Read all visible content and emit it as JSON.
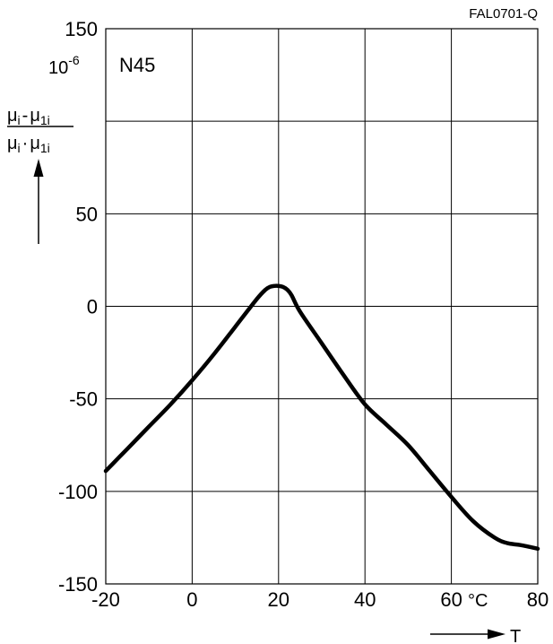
{
  "figure_id": "FAL0701-Q",
  "chart_data": {
    "type": "line",
    "material_label": "N45",
    "y_unit_base": "10",
    "y_unit_exp": "-6",
    "ylabel": {
      "num_a": "μ",
      "num_a_sub": "i",
      "num_op": "-",
      "num_b": "μ",
      "num_b_sub": "1i",
      "den_a": "μ",
      "den_a_sub": "i",
      "den_op": "·",
      "den_b": "μ",
      "den_b_sub": "1i"
    },
    "x_unit": "°C",
    "xlabel": "T",
    "xlim": [
      -20,
      80
    ],
    "ylim": [
      -150,
      150
    ],
    "xticks": [
      -20,
      0,
      20,
      40,
      60,
      80
    ],
    "yticks": [
      -150,
      -100,
      -50,
      0,
      50,
      150
    ],
    "x_gridlines": [
      0,
      20,
      40,
      60
    ],
    "y_gridlines": [
      -100,
      -50,
      0,
      50,
      100
    ],
    "grid": true,
    "series": [
      {
        "color": "#000000",
        "x": [
          -20,
          -15,
          -10,
          -5,
          0,
          5,
          10,
          15,
          17,
          18,
          19,
          20,
          21,
          22,
          23,
          25,
          30,
          35,
          40,
          45,
          50,
          55,
          60,
          65,
          70,
          73,
          76,
          80
        ],
        "y": [
          -89,
          -77,
          -65,
          -53,
          -40,
          -26,
          -11,
          4,
          9,
          10.5,
          11,
          11,
          10.5,
          9,
          6,
          -3,
          -20,
          -37,
          -53,
          -64,
          -75,
          -89,
          -103,
          -116,
          -125,
          -128,
          -129,
          -131
        ]
      }
    ]
  }
}
